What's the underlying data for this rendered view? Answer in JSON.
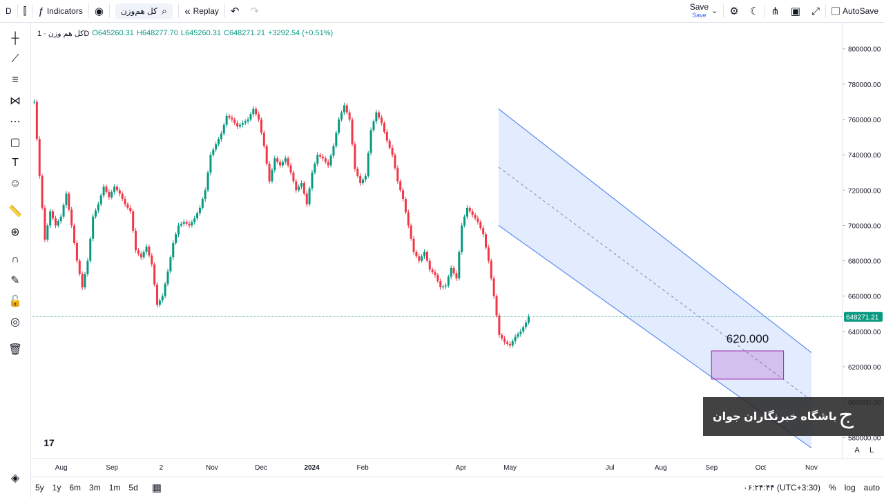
{
  "toolbar": {
    "interval": "D",
    "indicators_label": "Indicators",
    "symbol": "کل هم‌وزن",
    "replay_label": "Replay",
    "save_label": "Save",
    "save_sub": "Save",
    "autosave_label": "AutoSave"
  },
  "legend": {
    "title": "کل هم وزن · 1D",
    "open": "O645260.31",
    "high": "H648277.70",
    "low": "L645260.31",
    "close": "C648271.21",
    "change": "+3292.54 (+0.51%)"
  },
  "bottom": {
    "ranges": [
      "5y",
      "1y",
      "6m",
      "3m",
      "1m",
      "5d"
    ],
    "time": "۰۶:۲۴:۴۴ (UTC+3:30)",
    "percent": "%",
    "log": "log",
    "auto": "auto"
  },
  "watermark": {
    "text": "باشگاه خبرنگاران جوان"
  },
  "scale_buttons": {
    "a": "A",
    "l": "L"
  },
  "colors": {
    "up": "#089981",
    "down": "#f23645",
    "channel": "#2962ff",
    "box": "#9c27b0"
  },
  "chart_data": {
    "type": "candlestick",
    "x_ticks": [
      "Aug",
      "Sep",
      "2",
      "Nov",
      "Dec",
      "2024",
      "Feb",
      "Apr",
      "May",
      "Jul",
      "Aug",
      "Sep",
      "Oct",
      "Nov"
    ],
    "y_ticks": [
      580000,
      600000,
      620000,
      640000,
      660000,
      680000,
      700000,
      720000,
      740000,
      760000,
      780000,
      800000
    ],
    "y_tick_labels": [
      "580000.00",
      "600000.00",
      "620000.00",
      "640000.00",
      "660000.00",
      "680000.00",
      "700000.00",
      "720000.00",
      "740000.00",
      "760000.00",
      "780000.00",
      "800000.00"
    ],
    "ylim": [
      568000,
      812000
    ],
    "last_price": 648271.21,
    "last_price_label": "648271.21",
    "close_path": [
      [
        0,
        770000
      ],
      [
        2,
        728000
      ],
      [
        4,
        692000
      ],
      [
        6,
        708000
      ],
      [
        8,
        700000
      ],
      [
        10,
        705000
      ],
      [
        12,
        718000
      ],
      [
        14,
        700000
      ],
      [
        16,
        680000
      ],
      [
        18,
        665000
      ],
      [
        20,
        680000
      ],
      [
        22,
        705000
      ],
      [
        24,
        712000
      ],
      [
        26,
        722000
      ],
      [
        28,
        716000
      ],
      [
        30,
        722000
      ],
      [
        32,
        718000
      ],
      [
        34,
        712000
      ],
      [
        36,
        708000
      ],
      [
        38,
        686000
      ],
      [
        40,
        682000
      ],
      [
        42,
        688000
      ],
      [
        44,
        678000
      ],
      [
        46,
        655000
      ],
      [
        48,
        660000
      ],
      [
        50,
        674000
      ],
      [
        52,
        690000
      ],
      [
        54,
        700000
      ],
      [
        56,
        702000
      ],
      [
        58,
        700000
      ],
      [
        60,
        704000
      ],
      [
        62,
        710000
      ],
      [
        64,
        720000
      ],
      [
        66,
        740000
      ],
      [
        68,
        746000
      ],
      [
        70,
        752000
      ],
      [
        72,
        762000
      ],
      [
        74,
        760000
      ],
      [
        76,
        756000
      ],
      [
        78,
        758000
      ],
      [
        80,
        760000
      ],
      [
        82,
        766000
      ],
      [
        84,
        760000
      ],
      [
        86,
        745000
      ],
      [
        88,
        725000
      ],
      [
        90,
        738000
      ],
      [
        92,
        734000
      ],
      [
        94,
        738000
      ],
      [
        96,
        730000
      ],
      [
        98,
        720000
      ],
      [
        100,
        724000
      ],
      [
        102,
        712000
      ],
      [
        104,
        730000
      ],
      [
        106,
        740000
      ],
      [
        108,
        738000
      ],
      [
        110,
        734000
      ],
      [
        112,
        745000
      ],
      [
        114,
        760000
      ],
      [
        116,
        768000
      ],
      [
        118,
        760000
      ],
      [
        120,
        732000
      ],
      [
        122,
        724000
      ],
      [
        124,
        728000
      ],
      [
        126,
        754000
      ],
      [
        128,
        764000
      ],
      [
        130,
        758000
      ],
      [
        132,
        748000
      ],
      [
        134,
        740000
      ],
      [
        136,
        725000
      ],
      [
        138,
        715000
      ],
      [
        140,
        700000
      ],
      [
        142,
        685000
      ],
      [
        144,
        680000
      ],
      [
        146,
        685000
      ],
      [
        148,
        675000
      ],
      [
        150,
        672000
      ],
      [
        152,
        665000
      ],
      [
        154,
        666000
      ],
      [
        156,
        676000
      ],
      [
        158,
        670000
      ],
      [
        160,
        700000
      ],
      [
        162,
        710000
      ],
      [
        164,
        706000
      ],
      [
        166,
        702000
      ],
      [
        168,
        695000
      ],
      [
        170,
        680000
      ],
      [
        172,
        660000
      ],
      [
        174,
        638000
      ],
      [
        176,
        634000
      ],
      [
        178,
        632000
      ],
      [
        180,
        637000
      ],
      [
        182,
        640000
      ],
      [
        184,
        645000
      ],
      [
        185,
        648271
      ]
    ],
    "channel": {
      "upper": [
        [
          "2024-04-24",
          766000
        ],
        [
          "2024-11-01",
          628000
        ]
      ],
      "lower": [
        [
          "2024-04-24",
          700000
        ],
        [
          "2024-11-01",
          574000
        ]
      ],
      "mid_dashed": true
    },
    "target_box": {
      "label": "620.000",
      "y_low": 613000,
      "y_high": 629000,
      "x_from": "2024-09-01",
      "x_to": "2024-10-15"
    }
  }
}
